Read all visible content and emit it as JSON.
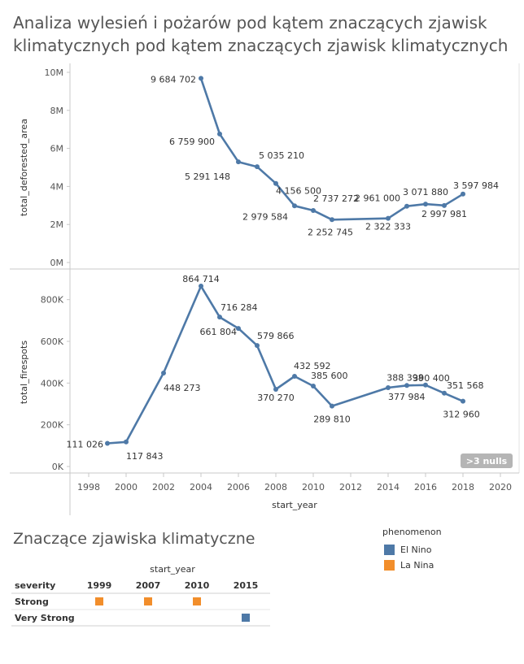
{
  "title": "Analiza wylesień i pożarów pod kątem znaczących zjawisk klimatycznych pod kątem znaczących zjawisk klimatycznych",
  "colors": {
    "line": "#4e79a7",
    "el_nino": "#4e79a7",
    "la_nina": "#f28e2b",
    "axis_text": "#555555",
    "grid": "#d9d9d9"
  },
  "chart_data": [
    {
      "type": "line",
      "ylabel": "total_deforested_area",
      "ylim": [
        0,
        10000000
      ],
      "yticks": [
        0,
        2000000,
        4000000,
        6000000,
        8000000,
        10000000
      ],
      "ytick_labels": [
        "0M",
        "2M",
        "4M",
        "6M",
        "8M",
        "10M"
      ],
      "x": [
        2004,
        2005,
        2006,
        2007,
        2008,
        2009,
        2010,
        2011,
        2014,
        2015,
        2016,
        2017,
        2018
      ],
      "values": [
        9684702,
        6759900,
        5291148,
        5035210,
        4156500,
        2979584,
        2737272,
        2252745,
        2322333,
        2961000,
        3071880,
        2997981,
        3597984
      ],
      "labels": [
        "9 684 702",
        "6 759 900",
        "5 291 148",
        "5 035 210",
        "4 156 500",
        "2 979 584",
        "2 737 272",
        "2 252 745",
        "2 322 333",
        "2 961 000",
        "3 071 880",
        "2 997 981",
        "3 597 984"
      ]
    },
    {
      "type": "line",
      "ylabel": "total_firespots",
      "ylim": [
        0,
        900000
      ],
      "yticks": [
        0,
        200000,
        400000,
        600000,
        800000
      ],
      "ytick_labels": [
        "0K",
        "200K",
        "400K",
        "600K",
        "800K"
      ],
      "x": [
        1999,
        2000,
        2002,
        2004,
        2005,
        2006,
        2007,
        2008,
        2009,
        2010,
        2011,
        2014,
        2015,
        2016,
        2017,
        2018
      ],
      "values": [
        111026,
        117843,
        448273,
        864714,
        716284,
        661804,
        579866,
        370270,
        432592,
        385600,
        289810,
        377984,
        388398,
        390400,
        351568,
        312960
      ],
      "labels": [
        "111 026",
        "117 843",
        "448 273",
        "864 714",
        "716 284",
        "661 804",
        "579 866",
        "370 270",
        "432 592",
        "385 600",
        "289 810",
        "377 984",
        "388 398",
        "390 400",
        "351 568",
        "312 960"
      ],
      "nulls_badge": ">3 nulls"
    }
  ],
  "x_axis": {
    "label": "start_year",
    "xlim": [
      1997,
      2021
    ],
    "ticks": [
      1998,
      2000,
      2002,
      2004,
      2006,
      2008,
      2010,
      2012,
      2014,
      2016,
      2018,
      2020
    ],
    "tick_labels": [
      "1998",
      "2000",
      "2002",
      "2004",
      "2006",
      "2008",
      "2010",
      "2012",
      "2014",
      "2016",
      "2018",
      "2020"
    ]
  },
  "phenomena": {
    "title": "Znaczące zjawiska klimatyczne",
    "column_header": "start_year",
    "row_header": "severity",
    "years": [
      "1999",
      "2007",
      "2010",
      "2015"
    ],
    "rows": [
      "Strong",
      "Very Strong"
    ],
    "cells": [
      {
        "row": "Strong",
        "year": "1999",
        "phenomenon": "La Nina"
      },
      {
        "row": "Strong",
        "year": "2007",
        "phenomenon": "La Nina"
      },
      {
        "row": "Strong",
        "year": "2010",
        "phenomenon": "La Nina"
      },
      {
        "row": "Very Strong",
        "year": "2015",
        "phenomenon": "El Nino"
      }
    ]
  },
  "legend": {
    "title": "phenomenon",
    "items": [
      {
        "label": "El Nino",
        "color": "#4e79a7"
      },
      {
        "label": "La Nina",
        "color": "#f28e2b"
      }
    ]
  }
}
